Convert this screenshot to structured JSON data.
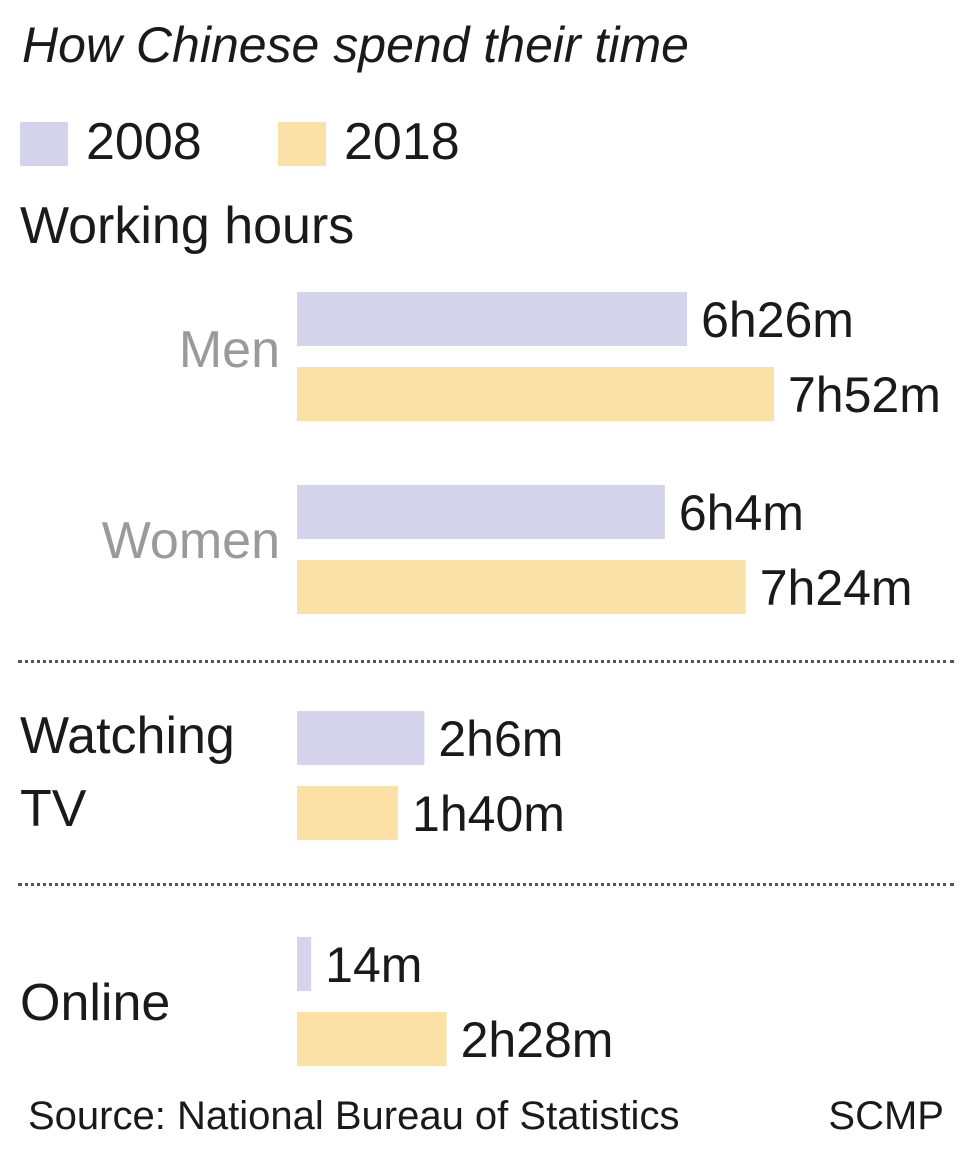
{
  "title": "How Chinese spend their time",
  "legend": [
    {
      "label": "2008",
      "color": "#d4d4ec"
    },
    {
      "label": "2018",
      "color": "#fbe1a5"
    }
  ],
  "sections": {
    "working": "Working hours",
    "men": "Men",
    "women": "Women",
    "tv_line1": "Watching",
    "tv_line2": "TV",
    "online": "Online"
  },
  "chart_data": {
    "type": "bar",
    "orientation": "horizontal",
    "title": "How Chinese spend their time",
    "unit": "minutes",
    "categories": [
      "Working hours - Men",
      "Working hours - Women",
      "Watching TV",
      "Online"
    ],
    "series": [
      {
        "name": "2008",
        "color": "#d4d4ec",
        "values": [
          386,
          364,
          126,
          14
        ],
        "labels": [
          "6h26m",
          "6h4m",
          "2h6m",
          "14m"
        ]
      },
      {
        "name": "2018",
        "color": "#fbe1a5",
        "values": [
          472,
          444,
          100,
          148
        ],
        "labels": [
          "7h52m",
          "7h24m",
          "1h40m",
          "2h28m"
        ]
      }
    ]
  },
  "footer": {
    "source": "Source: National Bureau of Statistics",
    "credit": "SCMP"
  }
}
